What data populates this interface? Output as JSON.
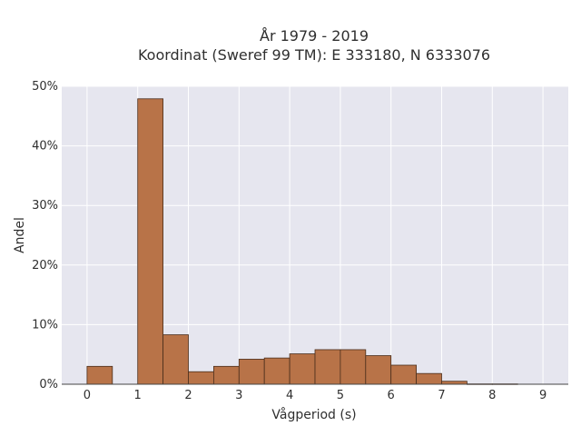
{
  "chart_data": {
    "type": "bar",
    "title_line1": "År 1979 - 2019",
    "title_line2": "Koordinat (Sweref 99 TM): E 333180, N 6333076",
    "xlabel": "Vågperiod (s)",
    "ylabel": "Andel",
    "xlim": [
      -0.5,
      9.5
    ],
    "ylim": [
      0,
      50
    ],
    "bin_width": 0.5,
    "bins": [
      {
        "start": 0.0,
        "value": 3.0
      },
      {
        "start": 0.5,
        "value": 0.0
      },
      {
        "start": 1.0,
        "value": 47.9
      },
      {
        "start": 1.5,
        "value": 8.3
      },
      {
        "start": 2.0,
        "value": 2.1
      },
      {
        "start": 2.5,
        "value": 3.0
      },
      {
        "start": 3.0,
        "value": 4.2
      },
      {
        "start": 3.5,
        "value": 4.4
      },
      {
        "start": 4.0,
        "value": 5.1
      },
      {
        "start": 4.5,
        "value": 5.8
      },
      {
        "start": 5.0,
        "value": 5.8
      },
      {
        "start": 5.5,
        "value": 4.8
      },
      {
        "start": 6.0,
        "value": 3.2
      },
      {
        "start": 6.5,
        "value": 1.8
      },
      {
        "start": 7.0,
        "value": 0.5
      },
      {
        "start": 7.5,
        "value": 0.05
      },
      {
        "start": 8.0,
        "value": 0.05
      },
      {
        "start": 8.5,
        "value": 0.0
      }
    ],
    "x_ticks": [
      "0",
      "1",
      "2",
      "3",
      "4",
      "5",
      "6",
      "7",
      "8",
      "9"
    ],
    "x_tick_values": [
      0,
      1,
      2,
      3,
      4,
      5,
      6,
      7,
      8,
      9
    ],
    "y_ticks": [
      "0%",
      "10%",
      "20%",
      "30%",
      "40%",
      "50%"
    ],
    "y_tick_values": [
      0,
      10,
      20,
      30,
      40,
      50
    ],
    "grid": true,
    "colors": {
      "bar_fill": "#b87348",
      "bar_stroke": "#4a2e1c",
      "plot_bg": "#e6e6ef",
      "grid": "#ffffff"
    }
  }
}
